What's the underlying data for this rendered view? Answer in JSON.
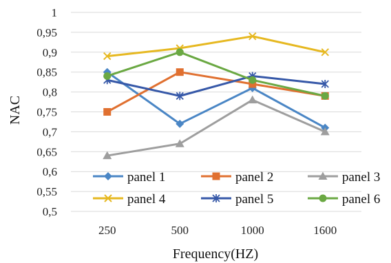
{
  "chart_data": {
    "type": "line",
    "title": "",
    "xlabel": "Frequency(HZ)",
    "ylabel": "NAC",
    "categories": [
      "250",
      "500",
      "1000",
      "1600"
    ],
    "ylim": [
      0.5,
      1.0
    ],
    "y_ticks": [
      "0,5",
      "0,55",
      "0,6",
      "0,65",
      "0,7",
      "0,75",
      "0,8",
      "0,85",
      "0,9",
      "0,95",
      "1"
    ],
    "grid": "horizontal",
    "legend_position": "bottom-inside",
    "series": [
      {
        "name": "panel 1",
        "values": [
          0.85,
          0.72,
          0.81,
          0.71
        ],
        "color": "#4a86c5",
        "marker": "diamond"
      },
      {
        "name": "panel 2",
        "values": [
          0.75,
          0.85,
          0.82,
          0.79
        ],
        "color": "#e07030",
        "marker": "square"
      },
      {
        "name": "panel 3",
        "values": [
          0.64,
          0.67,
          0.78,
          0.7
        ],
        "color": "#9e9e9e",
        "marker": "triangle"
      },
      {
        "name": "panel 4",
        "values": [
          0.89,
          0.91,
          0.94,
          0.9
        ],
        "color": "#e6b820",
        "marker": "x"
      },
      {
        "name": "panel 5",
        "values": [
          0.83,
          0.79,
          0.84,
          0.82
        ],
        "color": "#3658a8",
        "marker": "asterisk"
      },
      {
        "name": "panel 6",
        "values": [
          0.84,
          0.9,
          0.83,
          0.79
        ],
        "color": "#6aa842",
        "marker": "circle"
      }
    ]
  }
}
